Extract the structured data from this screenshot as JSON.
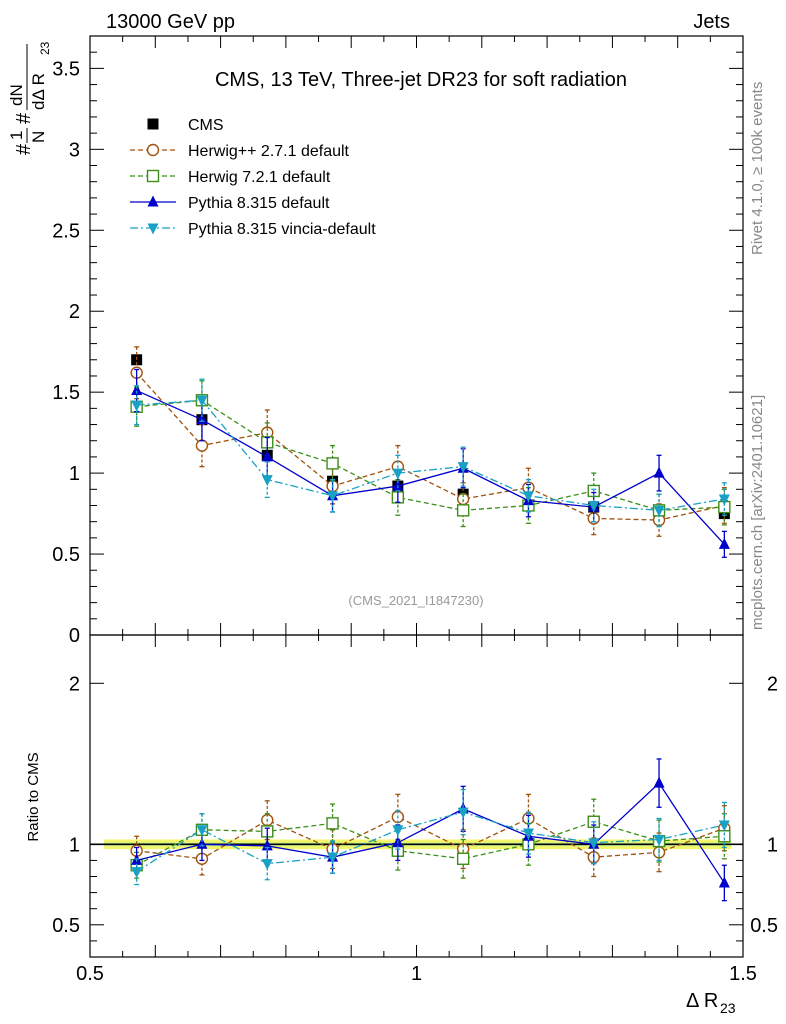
{
  "header": {
    "left": "13000 GeV pp",
    "right": "Jets"
  },
  "side": {
    "rivet": "Rivet 4.1.0, ≥ 100k events",
    "mcplots": "mcplots.cern.ch [arXiv:2401.10621]"
  },
  "colors": {
    "cms": "#000000",
    "herwigpp": "#a0520f",
    "herwig7": "#3c8f1a",
    "pythia": "#0000cc",
    "vincia": "#1aa0c4",
    "band_outer": "#f5f56a",
    "band_inner": "#c6f28c"
  },
  "chart_data": [
    {
      "type": "line",
      "title": "CMS, 13 TeV, Three-jet DR23 for soft radiation",
      "analysis_id": "(CMS_2021_I1847230)",
      "ylabel": {
        "num_top": "1",
        "num_bottom": "N",
        "hash1": "#",
        "hash2": "#",
        "dn": "dN",
        "den": "dΔ R",
        "den_sub": "23"
      },
      "xlim": [
        0.5,
        1.5
      ],
      "ylim": [
        0,
        3.7
      ],
      "y_ticks": [
        0,
        0.5,
        1,
        1.5,
        2,
        2.5,
        3,
        3.5
      ],
      "y_tick_labels": [
        "0",
        "0.5",
        "1",
        "1.5",
        "2",
        "2.5",
        "3",
        "3.5"
      ],
      "x": [
        0.55,
        0.65,
        0.75,
        0.85,
        0.95,
        1.05,
        1.15,
        1.25,
        1.35,
        1.45
      ],
      "series": [
        {
          "name": "CMS",
          "key": "cms",
          "marker": "square-filled",
          "dash": "none",
          "values": [
            1.7,
            1.33,
            1.11,
            0.95,
            0.92,
            0.87,
            0.8,
            0.79,
            0.75,
            0.75
          ],
          "errors": [
            0.02,
            0.02,
            0.02,
            0.02,
            0.02,
            0.02,
            0.02,
            0.02,
            0.02,
            0.02
          ]
        },
        {
          "name": "Herwig++ 2.7.1 default",
          "key": "herwigpp",
          "marker": "circle-open",
          "dash": "dashed",
          "values": [
            1.62,
            1.17,
            1.25,
            0.92,
            1.04,
            0.84,
            0.91,
            0.72,
            0.71,
            0.8
          ],
          "errors": [
            0.16,
            0.13,
            0.14,
            0.11,
            0.13,
            0.1,
            0.12,
            0.1,
            0.1,
            0.11
          ]
        },
        {
          "name": "Herwig 7.2.1 default",
          "key": "herwig7",
          "marker": "square-open",
          "dash": "dashed",
          "values": [
            1.41,
            1.45,
            1.19,
            1.06,
            0.85,
            0.77,
            0.8,
            0.89,
            0.77,
            0.79
          ],
          "errors": [
            0.12,
            0.12,
            0.12,
            0.11,
            0.11,
            0.1,
            0.11,
            0.11,
            0.1,
            0.11
          ]
        },
        {
          "name": "Pythia 8.315 default",
          "key": "pythia",
          "marker": "triangle-up",
          "dash": "solid",
          "values": [
            1.51,
            1.33,
            1.1,
            0.86,
            0.92,
            1.03,
            0.83,
            0.79,
            1.0,
            0.56
          ],
          "errors": [
            0.13,
            0.13,
            0.12,
            0.1,
            0.1,
            0.12,
            0.1,
            0.09,
            0.11,
            0.08
          ]
        },
        {
          "name": "Pythia 8.315 vincia-default",
          "key": "vincia",
          "marker": "triangle-down",
          "dash": "dashdot",
          "values": [
            1.42,
            1.45,
            0.96,
            0.86,
            1.0,
            1.04,
            0.86,
            0.8,
            0.77,
            0.84
          ],
          "errors": [
            0.12,
            0.13,
            0.11,
            0.1,
            0.11,
            0.12,
            0.1,
            0.1,
            0.1,
            0.1
          ]
        }
      ]
    },
    {
      "type": "line",
      "title": "Ratio to CMS",
      "ylabel": "Ratio to CMS",
      "xlabel": "Δ R",
      "xlabel_sub": "23",
      "xlim": [
        0.5,
        1.5
      ],
      "ylim": [
        0.3,
        2.3
      ],
      "x_ticks": [
        0.5,
        1,
        1.5
      ],
      "x_tick_labels": [
        "0.5",
        "1",
        "1.5"
      ],
      "y_ticks": [
        0.5,
        1,
        2
      ],
      "y_tick_labels": [
        "0.5",
        "1",
        "2"
      ],
      "band": {
        "inner": 0.012,
        "outer": 0.03
      },
      "x": [
        0.55,
        0.65,
        0.75,
        0.85,
        0.95,
        1.05,
        1.15,
        1.25,
        1.35,
        1.45
      ],
      "series": [
        {
          "name": "Herwig++ 2.7.1 default",
          "key": "herwigpp",
          "marker": "circle-open",
          "dash": "dashed",
          "values": [
            0.96,
            0.91,
            1.15,
            0.97,
            1.17,
            0.97,
            1.16,
            0.92,
            0.95,
            1.1
          ],
          "errors": [
            0.09,
            0.1,
            0.12,
            0.12,
            0.14,
            0.12,
            0.15,
            0.12,
            0.12,
            0.14
          ]
        },
        {
          "name": "Herwig 7.2.1 default",
          "key": "herwig7",
          "marker": "square-open",
          "dash": "dashed",
          "values": [
            0.87,
            1.09,
            1.08,
            1.13,
            0.96,
            0.91,
            1.0,
            1.14,
            1.02,
            1.05
          ],
          "errors": [
            0.08,
            0.1,
            0.11,
            0.12,
            0.12,
            0.12,
            0.13,
            0.14,
            0.13,
            0.14
          ]
        },
        {
          "name": "Pythia 8.315 default",
          "key": "pythia",
          "marker": "triangle-up",
          "dash": "solid",
          "values": [
            0.9,
            1.0,
            0.99,
            0.92,
            1.01,
            1.22,
            1.05,
            1.0,
            1.38,
            0.76
          ],
          "errors": [
            0.08,
            0.1,
            0.11,
            0.1,
            0.11,
            0.14,
            0.13,
            0.12,
            0.15,
            0.11
          ]
        },
        {
          "name": "Pythia 8.315 vincia-default",
          "key": "vincia",
          "marker": "triangle-down",
          "dash": "dashdot",
          "values": [
            0.83,
            1.09,
            0.88,
            0.92,
            1.09,
            1.2,
            1.07,
            1.01,
            1.03,
            1.12
          ],
          "errors": [
            0.08,
            0.1,
            0.1,
            0.1,
            0.12,
            0.14,
            0.13,
            0.13,
            0.13,
            0.14
          ]
        }
      ]
    }
  ]
}
